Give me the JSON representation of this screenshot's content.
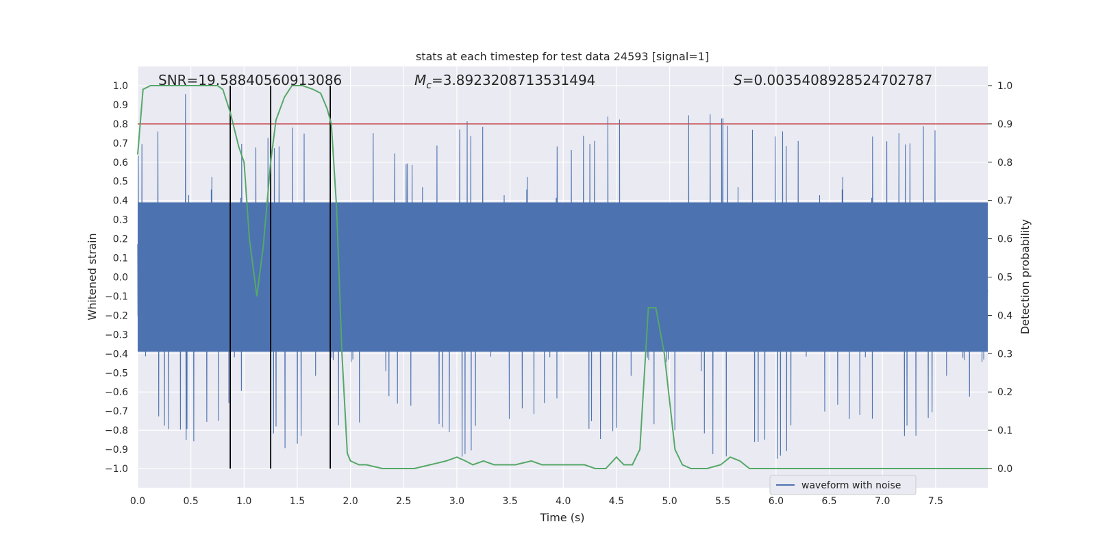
{
  "chart_data": {
    "type": "line",
    "title": "stats at each timestep for test data 24593 [signal=1]",
    "xlabel": "Time (s)",
    "ylabel_left": "Whitened strain",
    "ylabel_right": "Detection probability",
    "xlim": [
      0,
      7.99
    ],
    "ylim_left": [
      -1.1,
      1.1
    ],
    "ylim_right": [
      -0.05,
      1.05
    ],
    "grid": true,
    "x_ticks": [
      "0.0",
      "0.5",
      "1.0",
      "1.5",
      "2.0",
      "2.5",
      "3.0",
      "3.5",
      "4.0",
      "4.5",
      "5.0",
      "5.5",
      "6.0",
      "6.5",
      "7.0",
      "7.5"
    ],
    "y_ticks_left": [
      "1.0",
      "0.9",
      "0.8",
      "0.7",
      "0.6",
      "0.5",
      "0.4",
      "0.3",
      "0.2",
      "0.1",
      "0.0",
      "−0.1",
      "−0.2",
      "−0.3",
      "−0.4",
      "−0.5",
      "−0.6",
      "−0.7",
      "−0.8",
      "−0.9",
      "−1.0"
    ],
    "y_ticks_right": [
      "1.0",
      "0.9",
      "0.8",
      "0.7",
      "0.6",
      "0.5",
      "0.4",
      "0.3",
      "0.2",
      "0.1",
      "0.0"
    ],
    "annotations": {
      "snr": "SNR=19.58840560913086",
      "mc_symbol": "M",
      "mc_sub": "c",
      "mc_value": "=3.8923208713531494",
      "s_symbol": "S",
      "s_value": "=0.0035408928524702787"
    },
    "legend": {
      "label": "waveform with noise",
      "placement": "lower-right"
    },
    "threshold": {
      "axis": "right",
      "value": 0.9,
      "color": "#c44e52"
    },
    "vlines": [
      0.87,
      1.25,
      1.81
    ],
    "colors": {
      "waveform": "#4c72b0",
      "probability": "#55a868",
      "vline": "#000000",
      "plot_bg": "#eaeaf2",
      "grid": "#ffffff"
    },
    "series": [
      {
        "name": "waveform with noise",
        "axis": "left",
        "note": "dense whitened-strain noise trace spanning the full time range",
        "envelope_x": [
          0.0,
          0.5,
          1.0,
          1.5,
          2.0,
          2.5,
          3.0,
          3.5,
          4.0,
          4.5,
          5.0,
          5.5,
          6.0,
          6.5,
          7.0,
          7.5,
          7.99
        ],
        "envelope_max": [
          0.72,
          1.0,
          0.7,
          0.85,
          0.85,
          0.66,
          0.82,
          0.85,
          0.68,
          0.94,
          0.82,
          0.94,
          0.78,
          0.72,
          0.76,
          0.87,
          0.62
        ],
        "envelope_min": [
          -0.66,
          -0.92,
          -0.67,
          -0.98,
          -0.82,
          -0.66,
          -0.98,
          -0.78,
          -0.72,
          -0.92,
          -0.82,
          -0.98,
          -0.98,
          -0.72,
          -0.88,
          -0.82,
          -0.62
        ]
      },
      {
        "name": "",
        "axis": "right",
        "x": [
          0.0,
          0.05,
          0.12,
          0.25,
          0.4,
          0.6,
          0.75,
          0.8,
          0.87,
          0.95,
          1.0,
          1.05,
          1.12,
          1.18,
          1.25,
          1.3,
          1.38,
          1.45,
          1.55,
          1.65,
          1.72,
          1.78,
          1.82,
          1.87,
          1.92,
          1.97,
          2.0,
          2.08,
          2.15,
          2.3,
          2.6,
          2.75,
          2.9,
          3.0,
          3.08,
          3.15,
          3.25,
          3.35,
          3.45,
          3.55,
          3.7,
          3.8,
          3.9,
          4.0,
          4.1,
          4.2,
          4.3,
          4.4,
          4.5,
          4.57,
          4.65,
          4.72,
          4.8,
          4.87,
          4.95,
          5.05,
          5.12,
          5.2,
          5.35,
          5.48,
          5.57,
          5.66,
          5.75,
          5.95,
          6.1,
          6.3,
          6.6,
          7.0,
          7.4,
          7.7,
          7.99
        ],
        "values": [
          0.82,
          0.99,
          1.0,
          1.0,
          1.0,
          1.0,
          1.0,
          0.99,
          0.93,
          0.84,
          0.8,
          0.6,
          0.45,
          0.58,
          0.8,
          0.91,
          0.97,
          1.0,
          1.0,
          0.99,
          0.98,
          0.94,
          0.9,
          0.68,
          0.3,
          0.04,
          0.02,
          0.01,
          0.01,
          0.0,
          0.0,
          0.01,
          0.02,
          0.03,
          0.02,
          0.01,
          0.02,
          0.01,
          0.01,
          0.01,
          0.02,
          0.01,
          0.01,
          0.01,
          0.01,
          0.01,
          0.0,
          0.0,
          0.03,
          0.01,
          0.01,
          0.05,
          0.42,
          0.42,
          0.3,
          0.05,
          0.01,
          0.0,
          0.0,
          0.01,
          0.03,
          0.02,
          0.0,
          0.0,
          0.0,
          0.0,
          0.0,
          0.0,
          0.0,
          0.0,
          0.0
        ]
      }
    ]
  }
}
